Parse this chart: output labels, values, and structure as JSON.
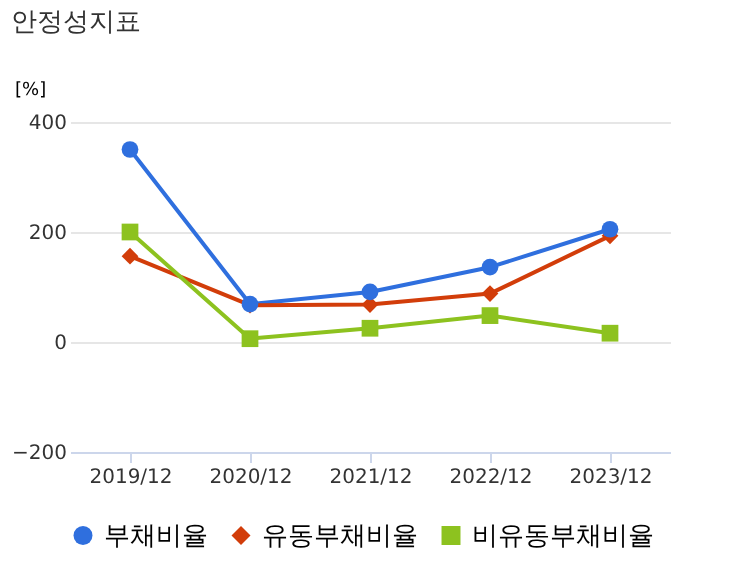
{
  "chart_data": {
    "type": "line",
    "title": "안정성지표",
    "ylabel": "[%]",
    "categories": [
      "2019/12",
      "2020/12",
      "2021/12",
      "2022/12",
      "2023/12"
    ],
    "series": [
      {
        "name": "부채비율",
        "color": "#2f6fde",
        "marker": "circle",
        "values": [
          350,
          69,
          91,
          136,
          205
        ]
      },
      {
        "name": "유동부채비율",
        "color": "#d23d0a",
        "marker": "diamond",
        "values": [
          156,
          67,
          68,
          88,
          193
        ]
      },
      {
        "name": "비유동부채비율",
        "color": "#8dc21f",
        "marker": "square",
        "values": [
          200,
          6,
          25,
          48,
          16
        ]
      }
    ],
    "ylim": [
      -200,
      400
    ],
    "yticks": [
      -200,
      0,
      200,
      400
    ],
    "grid": "y",
    "legend": "bottom"
  }
}
